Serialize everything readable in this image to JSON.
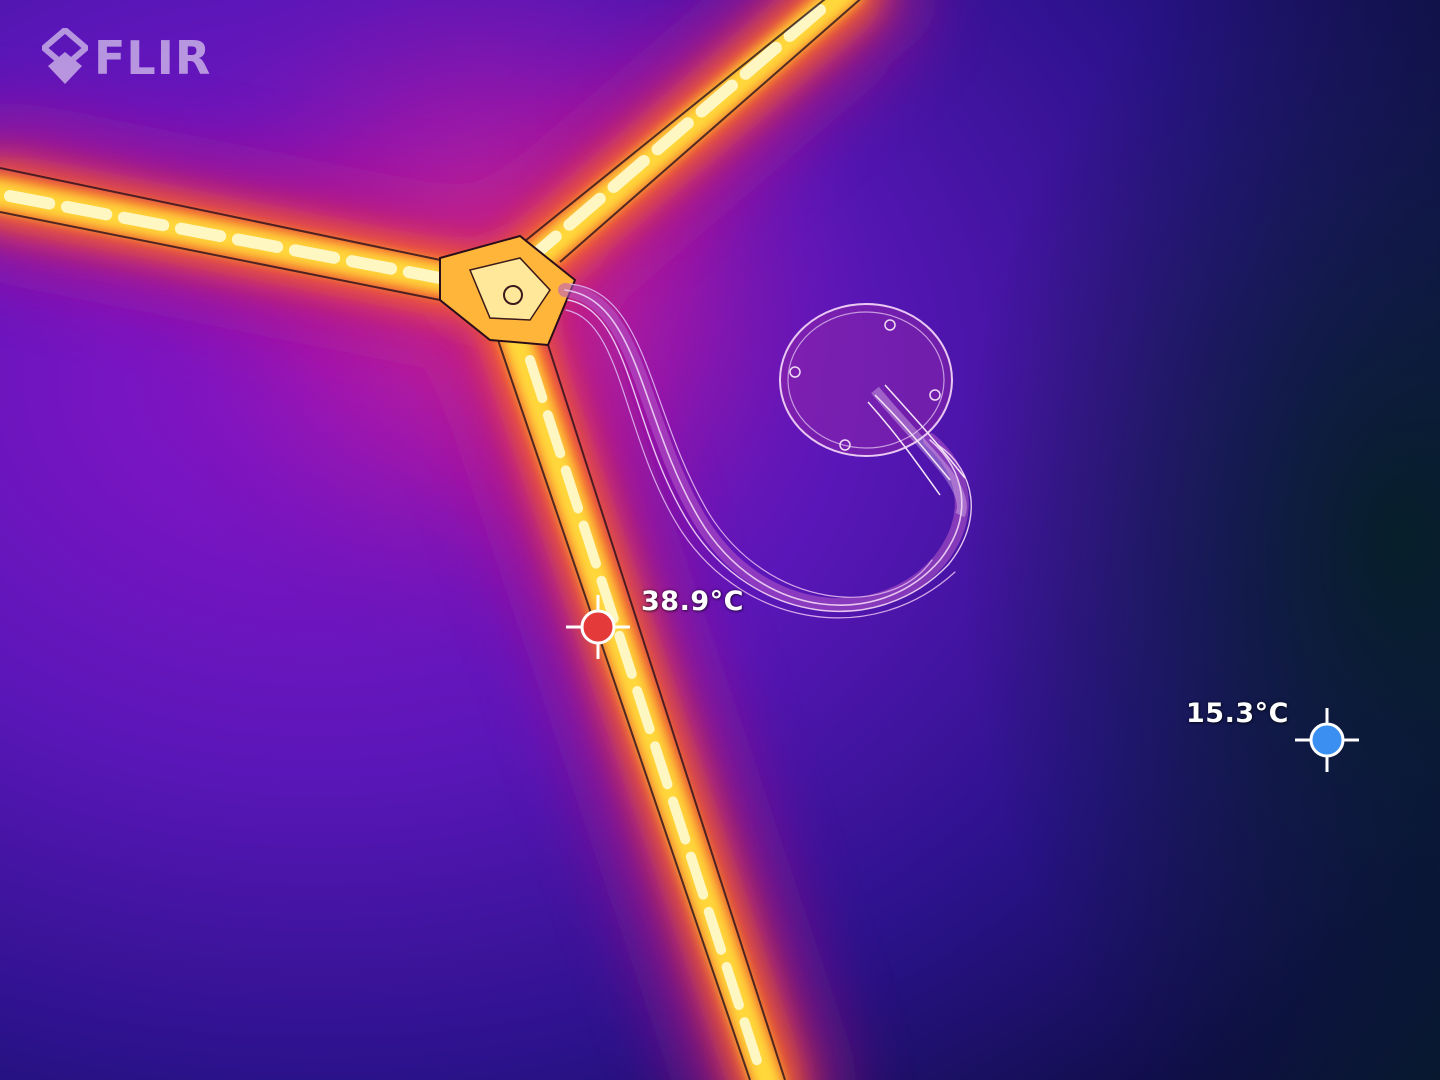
{
  "brand": {
    "logo_text": "FLIR",
    "logo_icon": "flir-diamond-logo-icon"
  },
  "spot_meters": {
    "hot": {
      "value": "38.9°C",
      "marker_color": "#e53a3a",
      "icon": "crosshair-hot-spot-icon"
    },
    "cold": {
      "value": "15.3°C",
      "marker_color": "#3a8ff0",
      "icon": "crosshair-cold-spot-icon"
    }
  },
  "palette": {
    "name": "iron",
    "hot_core": "#fffbd0",
    "hot": "#ffe14a",
    "warm": "#ff7a12",
    "mid": "#b413b8",
    "cool": "#5a18b8",
    "cold": "#0b0c38"
  }
}
